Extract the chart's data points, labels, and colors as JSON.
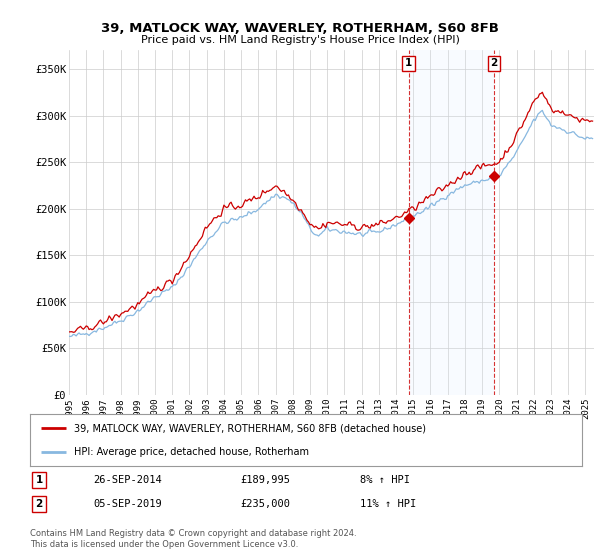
{
  "title": "39, MATLOCK WAY, WAVERLEY, ROTHERHAM, S60 8FB",
  "subtitle": "Price paid vs. HM Land Registry's House Price Index (HPI)",
  "legend_line1": "39, MATLOCK WAY, WAVERLEY, ROTHERHAM, S60 8FB (detached house)",
  "legend_line2": "HPI: Average price, detached house, Rotherham",
  "annotation1_date": "26-SEP-2014",
  "annotation1_price": "£189,995",
  "annotation1_hpi": "8% ↑ HPI",
  "annotation1_year": 2014.73,
  "annotation1_value": 189995,
  "annotation2_date": "05-SEP-2019",
  "annotation2_price": "£235,000",
  "annotation2_hpi": "11% ↑ HPI",
  "annotation2_year": 2019.68,
  "annotation2_value": 235000,
  "ylabel_ticks": [
    "£0",
    "£50K",
    "£100K",
    "£150K",
    "£200K",
    "£250K",
    "£300K",
    "£350K"
  ],
  "ytick_values": [
    0,
    50000,
    100000,
    150000,
    200000,
    250000,
    300000,
    350000
  ],
  "ylim": [
    0,
    370000
  ],
  "xlim_start": 1995.0,
  "xlim_end": 2025.5,
  "hpi_color": "#88b8e0",
  "hpi_fill_color": "#ddeeff",
  "price_color": "#cc0000",
  "background_color": "#ffffff",
  "grid_color": "#cccccc",
  "footer": "Contains HM Land Registry data © Crown copyright and database right 2024.\nThis data is licensed under the Open Government Licence v3.0."
}
